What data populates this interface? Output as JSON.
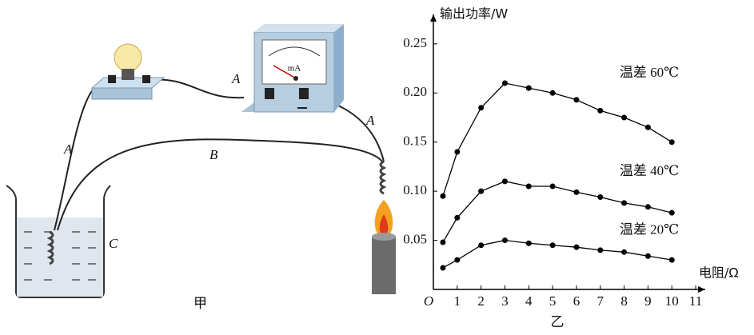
{
  "diagram": {
    "caption": "甲",
    "labels": [
      "A",
      "A",
      "A",
      "B",
      "C"
    ],
    "meter_unit": "mA"
  },
  "chart_data": {
    "type": "line",
    "caption": "乙",
    "y_label": "输出功率/W",
    "x_label": "电阻/Ω",
    "origin_label": "O",
    "x": [
      0.4,
      1,
      2,
      3,
      4,
      5,
      6,
      7,
      8,
      9,
      10
    ],
    "series": [
      {
        "name": "温差 60℃",
        "color": "#000000",
        "values": [
          0.095,
          0.14,
          0.185,
          0.21,
          0.205,
          0.2,
          0.193,
          0.182,
          0.175,
          0.165,
          0.15
        ]
      },
      {
        "name": "温差 40℃",
        "color": "#000000",
        "values": [
          0.048,
          0.073,
          0.1,
          0.11,
          0.105,
          0.105,
          0.099,
          0.094,
          0.088,
          0.084,
          0.078
        ]
      },
      {
        "name": "温差 20℃",
        "color": "#000000",
        "values": [
          0.022,
          0.03,
          0.045,
          0.05,
          0.047,
          0.045,
          0.043,
          0.04,
          0.038,
          0.034,
          0.03
        ]
      }
    ],
    "xlim": [
      0,
      11.4
    ],
    "ylim": [
      0,
      0.28
    ],
    "xticks": [
      1,
      2,
      3,
      4,
      5,
      6,
      7,
      8,
      9,
      10,
      11
    ],
    "yticks": [
      0.05,
      {
        "value": 0.1,
        "label": "0.10"
      },
      0.15,
      {
        "value": 0.2,
        "label": "0.20"
      },
      0.25
    ]
  }
}
